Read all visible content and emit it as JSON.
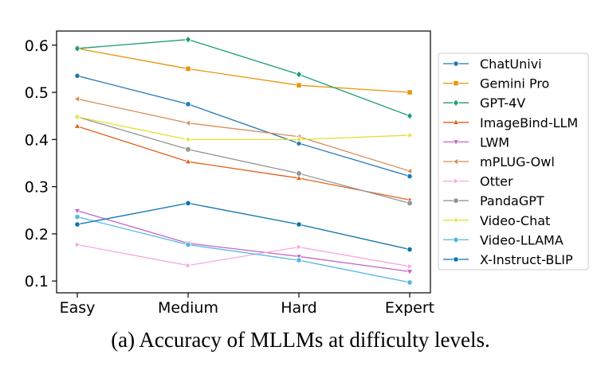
{
  "caption": "(a) Accuracy of MLLMs at difficulty levels.",
  "chart_data": {
    "type": "line",
    "categories": [
      "Easy",
      "Medium",
      "Hard",
      "Expert"
    ],
    "ylim": [
      0.075,
      0.63
    ],
    "yticks": [
      0.1,
      0.2,
      0.3,
      0.4,
      0.5,
      0.6
    ],
    "ytick_labels": [
      "0.1",
      "0.2",
      "0.3",
      "0.4",
      "0.5",
      "0.6"
    ],
    "grid": false,
    "legend_position": "right",
    "series": [
      {
        "name": "ChatUnivi",
        "values": [
          0.535,
          0.475,
          0.392,
          0.322
        ],
        "color": "#1f77b4",
        "marker": "circle"
      },
      {
        "name": "Gemini Pro",
        "values": [
          0.593,
          0.55,
          0.515,
          0.5
        ],
        "color": "#e8950c",
        "marker": "square"
      },
      {
        "name": "GPT-4V",
        "values": [
          0.593,
          0.612,
          0.538,
          0.45
        ],
        "color": "#1a9e6e",
        "marker": "diamond"
      },
      {
        "name": "ImageBind-LLM",
        "values": [
          0.428,
          0.353,
          0.318,
          0.272
        ],
        "color": "#e0601b",
        "marker": "triangle-up"
      },
      {
        "name": "LWM",
        "values": [
          0.249,
          0.18,
          0.152,
          0.12
        ],
        "color": "#c364c5",
        "marker": "triangle-down"
      },
      {
        "name": "mPLUG-Owl",
        "values": [
          0.486,
          0.435,
          0.406,
          0.333
        ],
        "color": "#d68b57",
        "marker": "triangle-left"
      },
      {
        "name": "Otter",
        "values": [
          0.177,
          0.133,
          0.172,
          0.131
        ],
        "color": "#f7a8dc",
        "marker": "triangle-right"
      },
      {
        "name": "PandaGPT",
        "values": [
          0.448,
          0.379,
          0.328,
          0.265
        ],
        "color": "#959595",
        "marker": "octagon"
      },
      {
        "name": "Video-Chat",
        "values": [
          0.448,
          0.4,
          0.4,
          0.409
        ],
        "color": "#e0e331",
        "marker": "star"
      },
      {
        "name": "Video-LLAMA",
        "values": [
          0.236,
          0.177,
          0.144,
          0.097
        ],
        "color": "#55b7e3",
        "marker": "hexagon"
      },
      {
        "name": "X-Instruct-BLIP",
        "values": [
          0.22,
          0.265,
          0.22,
          0.167
        ],
        "color": "#0c72b0",
        "marker": "circle"
      }
    ]
  }
}
